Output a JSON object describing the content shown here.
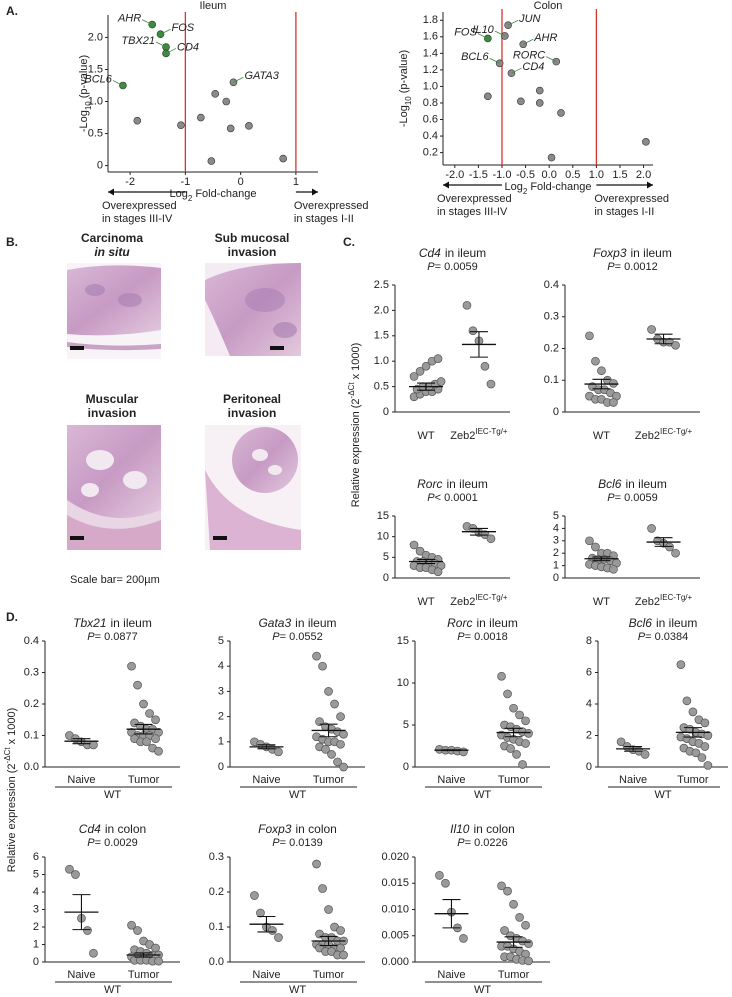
{
  "panel_labels": [
    "A.",
    "B.",
    "C.",
    "D."
  ],
  "histology": {
    "images": [
      {
        "title": "Carcinoma",
        "subtitle": "in situ"
      },
      {
        "title": "Sub mucosal",
        "subtitle": "invasion"
      },
      {
        "title": "Muscular",
        "subtitle": "invasion"
      },
      {
        "title": "Peritoneal",
        "subtitle": "invasion"
      }
    ],
    "scale_bar": "Scale bar= 200µm"
  },
  "shared_labels": {
    "ylabel_c": {
      "text": "Relative expression (2",
      "sup": "-ΔCt",
      "tail": "x 1000)"
    },
    "ylabel_d": {
      "text": "Relative expression (2",
      "sup": "-ΔCt",
      "tail": "x 1000)"
    }
  },
  "chart_data": [
    {
      "type": "scatter",
      "title": "Ileum",
      "xlabel": {
        "text": "Log",
        "sub": "2",
        "tail": "Fold-change"
      },
      "ylabel": {
        "text": "-Log",
        "sub": "10",
        "tail": "(p-value)"
      },
      "x": [
        -1.6,
        -1.45,
        -1.35,
        -1.35,
        -2.13,
        -0.13,
        -1.87,
        -1.08,
        -0.72,
        -0.46,
        -0.26,
        -0.18,
        0.15,
        -0.53,
        0.77
      ],
      "values": [
        2.2,
        2.05,
        1.85,
        1.75,
        1.25,
        1.3,
        0.7,
        0.63,
        0.75,
        1.12,
        1.0,
        0.58,
        0.62,
        0.07,
        0.11
      ],
      "point_labels": [
        "AHR",
        "FOS",
        "TBX21",
        "CD4",
        "BCL6",
        "GATA3",
        null,
        null,
        null,
        null,
        null,
        null,
        null,
        null,
        null
      ],
      "point_colors": [
        "#3d8b3d",
        "#3d8b3d",
        "#3d8b3d",
        "#3d8b3d",
        "#3d8b3d",
        "#8a8a8a",
        "#8a8a8a",
        "#8a8a8a",
        "#8a8a8a",
        "#8a8a8a",
        "#8a8a8a",
        "#8a8a8a",
        "#8a8a8a",
        "#8a8a8a",
        "#8a8a8a"
      ],
      "vlines": [
        -1,
        1
      ],
      "vline_color": "#d9342b",
      "xlim": [
        -2.4,
        1.4
      ],
      "xticks": [
        -2,
        -1,
        0,
        1
      ],
      "ylim": [
        -0.1,
        2.35
      ],
      "yticks": [
        0,
        0.5,
        {
          "value": 1,
          "label": "1.0"
        },
        1.5,
        {
          "value": 2,
          "label": "2.0"
        }
      ],
      "annotations": [
        {
          "lines": [
            "Overexpressed",
            "in stages III-IV"
          ],
          "direction": "left"
        },
        {
          "lines": [
            "Overexpressed",
            "in stages I-II"
          ],
          "direction": "right"
        }
      ]
    },
    {
      "type": "scatter",
      "title": "Colon",
      "xlabel": {
        "text": "Log",
        "sub": "2",
        "tail": "Fold-change"
      },
      "ylabel": {
        "text": "-Log",
        "sub": "10",
        "tail": "(p-value)"
      },
      "x": [
        -1.3,
        -0.87,
        -0.94,
        -0.55,
        -1.05,
        -0.8,
        0.15,
        -1.3,
        -0.6,
        -0.2,
        -0.2,
        0.25,
        0.05,
        2.05
      ],
      "values": [
        1.58,
        1.74,
        1.61,
        1.51,
        1.28,
        1.16,
        1.3,
        0.88,
        0.82,
        0.95,
        0.8,
        0.68,
        0.14,
        0.33
      ],
      "point_labels": [
        "FOS",
        "JUN",
        "IL10",
        "AHR",
        "BCL6",
        "CD4",
        "RORC",
        null,
        null,
        null,
        null,
        null,
        null,
        null
      ],
      "point_colors": [
        "#3d8b3d",
        "#8a8a8a",
        "#8a8a8a",
        "#8a8a8a",
        "#8a8a8a",
        "#8a8a8a",
        "#8a8a8a",
        "#8a8a8a",
        "#8a8a8a",
        "#8a8a8a",
        "#8a8a8a",
        "#8a8a8a",
        "#8a8a8a",
        "#8a8a8a"
      ],
      "vlines": [
        -1,
        1
      ],
      "vline_color": "#d9342b",
      "xlim": [
        -2.25,
        2.2
      ],
      "xticks": [
        {
          "value": -2,
          "label": "-2.0"
        },
        -1.5,
        {
          "value": -1,
          "label": "-1.0"
        },
        -0.5,
        {
          "value": 0,
          "label": "0.0"
        },
        0.5,
        {
          "value": 1,
          "label": "1.0"
        },
        1.5,
        {
          "value": 2,
          "label": "2.0"
        }
      ],
      "ylim": [
        0.05,
        1.9
      ],
      "yticks": [
        0.2,
        0.4,
        0.6,
        0.8,
        {
          "value": 1,
          "label": "1.0"
        },
        1.2,
        1.4,
        1.6,
        1.8
      ],
      "annotations": [
        {
          "lines": [
            "Overexpressed",
            "in stages III-IV"
          ],
          "direction": "left"
        },
        {
          "lines": [
            "Overexpressed",
            "in stages I-II"
          ],
          "direction": "right"
        }
      ]
    },
    {
      "type": "dot",
      "title": {
        "gene": "Cd4",
        "rest": "in ileum"
      },
      "stat": {
        "symbol": "P",
        "text": "= 0.0059"
      },
      "categories": [
        "WT",
        "Zeb2"
      ],
      "category_superscripts": [
        null,
        "IEC-Tg/+"
      ],
      "groups": [
        {
          "values": [
            0.3,
            0.35,
            0.4,
            0.4,
            0.45,
            0.45,
            0.5,
            0.5,
            0.55,
            0.6,
            0.7,
            0.8,
            0.9,
            1.0,
            1.05
          ],
          "mean": 0.5,
          "sem": 0.07
        },
        {
          "values": [
            2.1,
            1.6,
            1.4,
            0.9,
            0.55
          ],
          "mean": 1.33,
          "sem": 0.25
        }
      ],
      "ylim": [
        0,
        2.5
      ],
      "yticks": [
        0,
        0.5,
        {
          "value": 1,
          "label": "1.0"
        },
        1.5,
        {
          "value": 2,
          "label": "2.0"
        },
        2.5
      ]
    },
    {
      "type": "dot",
      "title": {
        "gene": "Foxp3",
        "rest": "in ileum"
      },
      "stat": {
        "symbol": "P",
        "text": "= 0.0012"
      },
      "categories": [
        "WT",
        "Zeb2"
      ],
      "category_superscripts": [
        null,
        "IEC-Tg/+"
      ],
      "groups": [
        {
          "values": [
            0.24,
            0.16,
            0.13,
            0.1,
            0.09,
            0.08,
            0.07,
            0.07,
            0.06,
            0.05,
            0.05,
            0.04,
            0.04,
            0.03,
            0.03
          ],
          "mean": 0.088,
          "sem": 0.015
        },
        {
          "values": [
            0.26,
            0.23,
            0.22,
            0.22,
            0.21
          ],
          "mean": 0.23,
          "sem": 0.015
        }
      ],
      "ylim": [
        0,
        0.4
      ],
      "yticks": [
        0,
        0.1,
        0.2,
        0.3,
        0.4
      ]
    },
    {
      "type": "dot",
      "title": {
        "gene": "Rorc",
        "rest": "in ileum"
      },
      "stat": {
        "symbol": "P",
        "text": "< 0.0001"
      },
      "categories": [
        "WT",
        "Zeb2"
      ],
      "category_superscripts": [
        null,
        "IEC-Tg/+"
      ],
      "groups": [
        {
          "values": [
            8,
            6.5,
            5.5,
            5,
            4.5,
            4,
            4,
            3.5,
            3.5,
            3,
            3,
            2.5,
            2.5,
            2,
            1.5
          ],
          "mean": 4.0,
          "sem": 0.5
        },
        {
          "values": [
            12.5,
            12,
            11,
            10.5,
            9.5
          ],
          "mean": 11.2,
          "sem": 0.8
        }
      ],
      "ylim": [
        0,
        15
      ],
      "yticks": [
        0,
        5,
        10,
        15
      ]
    },
    {
      "type": "dot",
      "title": {
        "gene": "Bcl6",
        "rest": "in ileum"
      },
      "stat": {
        "symbol": "P",
        "text": "= 0.0059"
      },
      "categories": [
        "WT",
        "Zeb2"
      ],
      "category_superscripts": [
        null,
        "IEC-Tg/+"
      ],
      "groups": [
        {
          "values": [
            3.0,
            2.5,
            2.0,
            2.0,
            1.8,
            1.6,
            1.5,
            1.5,
            1.4,
            1.2,
            1.1,
            1.0,
            0.9,
            0.8,
            0.7
          ],
          "mean": 1.55,
          "sem": 0.15
        },
        {
          "values": [
            4.0,
            3.0,
            2.8,
            2.5,
            2.0
          ],
          "mean": 2.9,
          "sem": 0.35
        }
      ],
      "ylim": [
        0,
        5
      ],
      "yticks": [
        0,
        1,
        2,
        3,
        4,
        5
      ]
    },
    {
      "type": "dot",
      "title": {
        "gene": "Tbx21",
        "rest": "in ileum"
      },
      "stat": {
        "symbol": "P",
        "text": "= 0.0877"
      },
      "categories": [
        "Naive",
        "Tumor"
      ],
      "group_label": "WT",
      "groups": [
        {
          "values": [
            0.1,
            0.09,
            0.08,
            0.07,
            0.07
          ],
          "mean": 0.082,
          "sem": 0.008
        },
        {
          "values": [
            0.32,
            0.26,
            0.2,
            0.17,
            0.15,
            0.14,
            0.13,
            0.12,
            0.12,
            0.11,
            0.11,
            0.1,
            0.1,
            0.1,
            0.09,
            0.09,
            0.08,
            0.08,
            0.06,
            0.05
          ],
          "mean": 0.12,
          "sem": 0.015
        }
      ],
      "ylim": [
        0,
        0.4
      ],
      "yticks": [
        {
          "value": 0,
          "label": "0.0"
        },
        0.1,
        0.2,
        0.3,
        0.4
      ]
    },
    {
      "type": "dot",
      "title": {
        "gene": "Gata3",
        "rest": "in ileum"
      },
      "stat": {
        "symbol": "P",
        "text": "= 0.0552"
      },
      "categories": [
        "Naive",
        "Tumor"
      ],
      "group_label": "WT",
      "groups": [
        {
          "values": [
            1.0,
            0.9,
            0.8,
            0.7,
            0.6
          ],
          "mean": 0.8,
          "sem": 0.08
        },
        {
          "values": [
            4.4,
            4.0,
            3.0,
            2.5,
            2.0,
            1.8,
            1.6,
            1.5,
            1.4,
            1.3,
            1.2,
            1.1,
            1.0,
            1.0,
            0.9,
            0.8,
            0.7,
            0.5,
            0.2,
            0.0
          ],
          "mean": 1.45,
          "sem": 0.25
        }
      ],
      "ylim": [
        0,
        5
      ],
      "yticks": [
        0,
        1,
        2,
        3,
        4,
        5
      ]
    },
    {
      "type": "dot",
      "title": {
        "gene": "Rorc",
        "rest": "in ileum"
      },
      "stat": {
        "symbol": "P",
        "text": "= 0.0018"
      },
      "categories": [
        "Naive",
        "Tumor"
      ],
      "group_label": "WT",
      "groups": [
        {
          "values": [
            2.1,
            2.0,
            2.0,
            1.9,
            1.8
          ],
          "mean": 2.0,
          "sem": 0.05
        },
        {
          "values": [
            10.8,
            8.7,
            7,
            6.2,
            5.5,
            5,
            4.8,
            4.5,
            4.2,
            4,
            3.8,
            3.5,
            3.3,
            3,
            2.8,
            2.5,
            2.2,
            1.5,
            0.3
          ],
          "mean": 4.1,
          "sem": 0.5
        }
      ],
      "ylim": [
        0,
        15
      ],
      "yticks": [
        0,
        5,
        10,
        15
      ]
    },
    {
      "type": "dot",
      "title": {
        "gene": "Bcl6",
        "rest": "in ileum"
      },
      "stat": {
        "symbol": "P",
        "text": "= 0.0384"
      },
      "categories": [
        "Naive",
        "Tumor"
      ],
      "group_label": "WT",
      "groups": [
        {
          "values": [
            1.6,
            1.3,
            1.1,
            1.0,
            0.8
          ],
          "mean": 1.15,
          "sem": 0.15
        },
        {
          "values": [
            6.5,
            4.2,
            3.5,
            3.0,
            2.8,
            2.5,
            2.4,
            2.2,
            2.1,
            2,
            1.9,
            1.8,
            1.6,
            1.5,
            1.3,
            1.2,
            1.0,
            0.9,
            0.6,
            0.1
          ],
          "mean": 2.2,
          "sem": 0.3
        }
      ],
      "ylim": [
        0,
        8
      ],
      "yticks": [
        0,
        2,
        4,
        6,
        8
      ]
    },
    {
      "type": "dot",
      "title": {
        "gene": "Cd4",
        "rest": "in colon"
      },
      "stat": {
        "symbol": "P",
        "text": "= 0.0029"
      },
      "categories": [
        "Naive",
        "Tumor"
      ],
      "group_label": "WT",
      "groups": [
        {
          "values": [
            5.3,
            5.0,
            2.5,
            1.8,
            0.5
          ],
          "mean": 2.85,
          "sem": 1.0
        },
        {
          "values": [
            2.1,
            1.8,
            1.2,
            1.0,
            0.8,
            0.7,
            0.6,
            0.5,
            0.4,
            0.4,
            0.3,
            0.3,
            0.2,
            0.2,
            0.2,
            0.1,
            0.1,
            0.1,
            0.05,
            0.05
          ],
          "mean": 0.4,
          "sem": 0.12
        }
      ],
      "ylim": [
        0,
        6
      ],
      "yticks": [
        0,
        1,
        2,
        3,
        4,
        5,
        6
      ]
    },
    {
      "type": "dot",
      "title": {
        "gene": "Foxp3",
        "rest": "in colon"
      },
      "stat": {
        "symbol": "P",
        "text": "= 0.0139"
      },
      "categories": [
        "Naive",
        "Tumor"
      ],
      "group_label": "WT",
      "groups": [
        {
          "values": [
            0.19,
            0.14,
            0.1,
            0.09,
            0.07
          ],
          "mean": 0.108,
          "sem": 0.022
        },
        {
          "values": [
            0.28,
            0.21,
            0.15,
            0.1,
            0.09,
            0.08,
            0.07,
            0.07,
            0.06,
            0.06,
            0.05,
            0.05,
            0.05,
            0.04,
            0.04,
            0.04,
            0.03,
            0.03,
            0.02,
            0.02
          ],
          "mean": 0.06,
          "sem": 0.013
        }
      ],
      "ylim": [
        0,
        0.3
      ],
      "yticks": [
        {
          "value": 0,
          "label": "0.0"
        },
        0.1,
        0.2,
        0.3
      ]
    },
    {
      "type": "dot",
      "title": {
        "gene": "Il10",
        "rest": "in colon"
      },
      "stat": {
        "symbol": "P",
        "text": "= 0.0226"
      },
      "categories": [
        "Naive",
        "Tumor"
      ],
      "group_label": "WT",
      "groups": [
        {
          "values": [
            0.0165,
            0.015,
            0.0095,
            0.0065,
            0.0045
          ],
          "mean": 0.0092,
          "sem": 0.0027
        },
        {
          "values": [
            0.0145,
            0.0135,
            0.011,
            0.0085,
            0.007,
            0.006,
            0.005,
            0.0045,
            0.004,
            0.0035,
            0.003,
            0.003,
            0.0025,
            0.002,
            0.0015,
            0.001,
            0.001,
            0.0005,
            0.0003,
            0.0002
          ],
          "mean": 0.0038,
          "sem": 0.001
        }
      ],
      "ylim": [
        0,
        0.02
      ],
      "yticks": [
        {
          "value": 0,
          "label": "0.000"
        },
        {
          "value": 0.005,
          "label": "0.005"
        },
        {
          "value": 0.01,
          "label": "0.010"
        },
        {
          "value": 0.015,
          "label": "0.015"
        },
        {
          "value": 0.02,
          "label": "0.020"
        }
      ]
    }
  ]
}
